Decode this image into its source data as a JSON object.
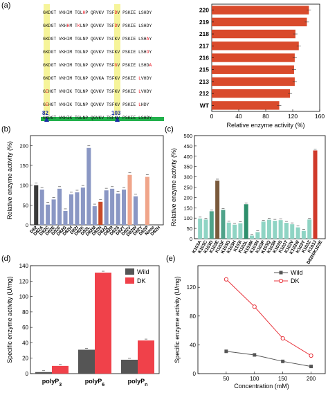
{
  "panel_labels": {
    "a": "(a)",
    "b": "(b)",
    "c": "(c)",
    "d": "(d)",
    "e": "(e)"
  },
  "alignment": {
    "rows": [
      [
        {
          "t": "GKDGT VKHIM TGL",
          "c": "k"
        },
        {
          "t": "H",
          "c": "r"
        },
        {
          "t": "P QRVKV TSF",
          "c": "k"
        },
        {
          "t": "D",
          "c": "r"
        },
        {
          "t": "V PSKIE LSHDY",
          "c": "k"
        }
      ],
      [
        {
          "t": "GKDGT VKH",
          "c": "k"
        },
        {
          "t": "H",
          "c": "r"
        },
        {
          "t": "M T",
          "c": "k"
        },
        {
          "t": "K",
          "c": "r"
        },
        {
          "t": "LNP QGVKV TSF",
          "c": "k"
        },
        {
          "t": "D",
          "c": "r"
        },
        {
          "t": "V PSKIE LSHDY",
          "c": "k"
        }
      ],
      [
        {
          "t": "GKDGT VKHIM TGLNP QGVKV TSFKV PSKIE LSH",
          "c": "k"
        },
        {
          "t": "A",
          "c": "r"
        },
        {
          "t": "Y",
          "c": "k"
        }
      ],
      [
        {
          "t": "GKDGT VKHIM TGLNP QGVKV TSFKV PSKIE LSH",
          "c": "k"
        },
        {
          "t": "D",
          "c": "r"
        },
        {
          "t": "Y",
          "c": "k"
        }
      ],
      [
        {
          "t": "GKDGT VKHIM TGLNP QGVKV TSF",
          "c": "k"
        },
        {
          "t": "G",
          "c": "r"
        },
        {
          "t": "V PSKIE LSHD",
          "c": "k"
        },
        {
          "t": "A",
          "c": "r"
        }
      ],
      [
        {
          "t": "GKDGT VKHIM TGLNP QGVKA TSFKV PSKIE ",
          "c": "k"
        },
        {
          "t": "L",
          "c": "r"
        },
        {
          "t": "VHDY",
          "c": "k"
        }
      ],
      [
        {
          "t": "G",
          "c": "k"
        },
        {
          "t": "E",
          "c": "r"
        },
        {
          "t": "HGT VKHIK TGLNP QGVKV TSFKV PSKIE ",
          "c": "k"
        },
        {
          "t": "L",
          "c": "r"
        },
        {
          "t": "VHDY",
          "c": "k"
        }
      ],
      [
        {
          "t": "G",
          "c": "k"
        },
        {
          "t": "E",
          "c": "r"
        },
        {
          "t": "HGT VKHIK TGLNP QGVKV TSFKV PSKIE ",
          "c": "k"
        },
        {
          "t": "L",
          "c": "r"
        },
        {
          "t": "HDY",
          "c": "k"
        }
      ],
      [
        {
          "t": "GKDGT VKHIK TGLNP QGVKV TSFKV PSKIE LSHDY",
          "c": "k"
        }
      ]
    ],
    "marker_82": "82",
    "marker_103": "103"
  },
  "chart_data": [
    {
      "id": "a",
      "type": "bar",
      "orientation": "horizontal",
      "categories": [
        "220",
        "219",
        "218",
        "217",
        "216",
        "215",
        "213",
        "212",
        "WT"
      ],
      "values": [
        144,
        141,
        124,
        129,
        123,
        122,
        123,
        116,
        100
      ],
      "xlabel": "Relative enzyme activity (%)",
      "xlim": [
        0,
        160
      ],
      "xticks": [
        "0",
        "40",
        "80",
        "120",
        "160"
      ],
      "color": "#d94a2c"
    },
    {
      "id": "b",
      "type": "bar",
      "categories": [
        "D82",
        "D82A",
        "D82C",
        "D82E",
        "D82F",
        "D82G",
        "D82H",
        "D82I",
        "D82K",
        "D82L",
        "D82M",
        "D82N",
        "D82Q",
        "D82R",
        "D82S",
        "D82T",
        "D82V",
        "D82W",
        "D82Y",
        "D82P",
        "None",
        "D82H"
      ],
      "values": [
        100,
        89,
        51,
        64,
        91,
        35,
        77,
        82,
        94,
        194,
        47,
        58,
        87,
        91,
        79,
        89,
        126,
        72,
        null,
        121,
        null,
        null
      ],
      "ylabel": "Relative enzyme activity (%)",
      "ylim": [
        0,
        225
      ],
      "yticks": [
        "0",
        "50",
        "100",
        "150",
        "200"
      ]
    },
    {
      "id": "c",
      "type": "bar",
      "categories": [
        "K103A",
        "K103C",
        "K103D",
        "K103E",
        "K103F",
        "K103G",
        "K103H",
        "K103I",
        "K103L",
        "K103M",
        "K103N",
        "K103P",
        "K103Q",
        "K103R",
        "K103S",
        "K103T",
        "K103V",
        "K103W",
        "K103Y",
        "K103Z",
        "K103J",
        "D82N/K103E"
      ],
      "values": [
        98,
        93,
        133,
        282,
        140,
        78,
        68,
        75,
        167,
        15,
        32,
        83,
        92,
        87,
        90,
        77,
        70,
        55,
        38,
        93,
        428,
        null
      ],
      "ylabel": "Relative enzyme activity (%)",
      "ylim": [
        0,
        500
      ],
      "yticks": [
        "0",
        "50",
        "100",
        "150",
        "200",
        "250",
        "300",
        "350",
        "400",
        "450",
        "500"
      ]
    },
    {
      "id": "d",
      "type": "bar",
      "categories": [
        "polyP3",
        "polyP6",
        "polyPn"
      ],
      "category_labels": [
        "polyP",
        "polyP",
        "polyP"
      ],
      "category_subs": [
        "3",
        "6",
        "n"
      ],
      "series": [
        {
          "name": "Wild",
          "values": [
            2,
            31,
            18
          ],
          "color": "#555555"
        },
        {
          "name": "DK",
          "values": [
            10,
            131,
            43
          ],
          "color": "#f0414a"
        }
      ],
      "ylabel": "Specific enzyme activity (U/mg)",
      "ylim": [
        0,
        140
      ],
      "yticks": [
        "0",
        "20",
        "40",
        "60",
        "80",
        "100",
        "120",
        "140"
      ]
    },
    {
      "id": "e",
      "type": "line",
      "x": [
        50,
        100,
        150,
        200
      ],
      "series": [
        {
          "name": "Wild",
          "values": [
            31,
            26,
            17,
            10
          ],
          "color": "#555555"
        },
        {
          "name": "DK",
          "values": [
            131,
            93,
            49,
            25
          ],
          "color": "#e8343c"
        }
      ],
      "xlabel": "Concentration (mM)",
      "ylabel": "Specific enzyme activity (U/mg)",
      "xlim": [
        0,
        225
      ],
      "ylim": [
        0,
        150
      ],
      "xticks": [
        "50",
        "100",
        "150",
        "200"
      ],
      "yticks": [
        "0",
        "40",
        "80",
        "120"
      ]
    }
  ]
}
